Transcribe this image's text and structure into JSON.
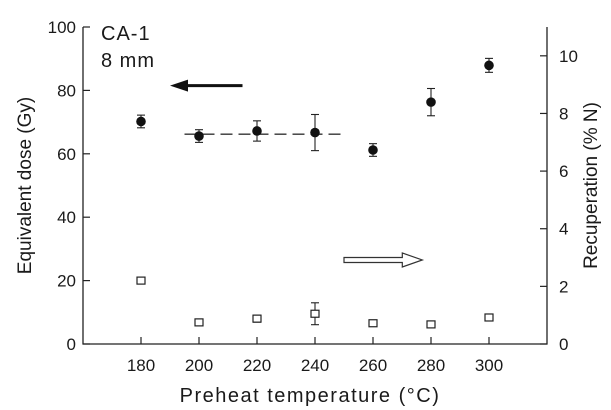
{
  "chart_data": {
    "type": "scatter",
    "xlabel": "Preheat temperature (°C)",
    "ylabel_left": "Equivalent dose (Gy)",
    "ylabel_right": "Recuperation (% N)",
    "xlim": [
      160,
      320
    ],
    "ylim_left": [
      0,
      100
    ],
    "ylim_right": [
      0,
      11
    ],
    "x_ticks": [
      180,
      200,
      220,
      240,
      260,
      280,
      300
    ],
    "y_ticks_left": [
      0,
      20,
      40,
      60,
      80,
      100
    ],
    "y_ticks_right": [
      0,
      2,
      4,
      6,
      8,
      10
    ],
    "annotations": [
      "CA-1",
      "8 mm"
    ],
    "series": [
      {
        "marker": "filled-circle",
        "axis": "left",
        "x": [
          180,
          200,
          220,
          240,
          260,
          280,
          300
        ],
        "y": [
          70.2,
          65.6,
          67.2,
          66.7,
          61.2,
          76.3,
          87.9
        ],
        "err": [
          2.0,
          2.0,
          3.2,
          5.7,
          2.0,
          4.3,
          2.2
        ]
      },
      {
        "marker": "open-square",
        "axis": "right",
        "x": [
          180,
          200,
          220,
          240,
          260,
          280,
          300
        ],
        "y": [
          2.2,
          0.75,
          0.88,
          1.05,
          0.72,
          0.68,
          0.92
        ],
        "err": [
          0.1,
          0.08,
          0.12,
          0.38,
          0.06,
          0.05,
          0.1
        ]
      }
    ],
    "mean_line": {
      "x_from": 195,
      "x_to": 250,
      "y": 66.2,
      "axis": "left",
      "style": "dashed"
    },
    "arrows": [
      {
        "direction": "left",
        "points_to": "left-axis",
        "style": "solid",
        "x_from": 215,
        "x_to": 190,
        "y": 81.5,
        "axis": "left"
      },
      {
        "direction": "right",
        "points_to": "right-axis",
        "style": "open",
        "x_from": 250,
        "x_to": 277,
        "y": 26.5,
        "axis": "left"
      }
    ],
    "grid": false,
    "colors": {
      "ink": "#1a1a1a",
      "background": "#ffffff"
    }
  }
}
